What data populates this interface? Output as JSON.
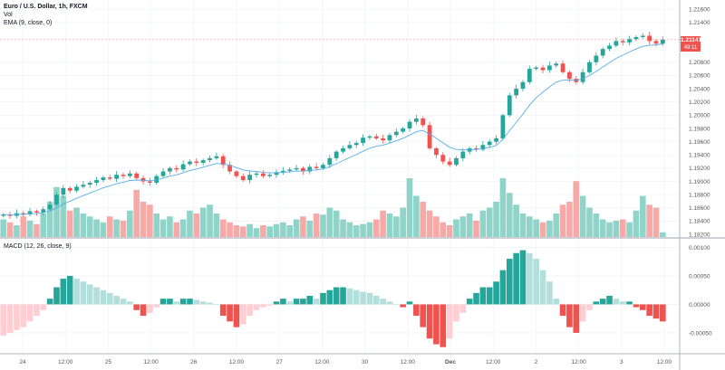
{
  "header": {
    "title": "Euro / U.S. Dollar, 1h, FXCM",
    "volume_label": "Vol",
    "ema_label": "EMA (9, close, 0)",
    "macd_label": "MACD (12, 26, close, 9)"
  },
  "price_tag": {
    "value": "1.21141",
    "countdown": "49:11"
  },
  "colors": {
    "up": "#26a69a",
    "down": "#ef5350",
    "vol_up": "#8fd3c9",
    "vol_down": "#f7a9a7",
    "ema": "#5aaee8",
    "macd_up_strong": "#26a69a",
    "macd_up_weak": "#b2dfdb",
    "macd_down_strong": "#ef5350",
    "macd_down_weak": "#ffcdd2"
  },
  "chart_data": [
    {
      "type": "candlestick",
      "title": "Euro / U.S. Dollar, 1h, FXCM",
      "y_ticks": [
        "1.21600",
        "1.21400",
        "1.20800",
        "1.20600",
        "1.20400",
        "1.20200",
        "1.20000",
        "1.19800",
        "1.19600",
        "1.19400",
        "1.19200",
        "1.19000",
        "1.18800",
        "1.18600",
        "1.18400",
        "1.18200"
      ],
      "ylim": [
        1.1816,
        1.2174
      ],
      "x_ticks": [
        "24",
        "12:00",
        "25",
        "12:00",
        "26",
        "12:00",
        "27",
        "12:00",
        "30",
        "12:00",
        "Dec",
        "12:00",
        "2",
        "12:00",
        "3",
        "12:00"
      ],
      "close": [
        1.185,
        1.1848,
        1.1852,
        1.185,
        1.1855,
        1.1853,
        1.1858,
        1.1865,
        1.188,
        1.189,
        1.1886,
        1.1892,
        1.1895,
        1.1898,
        1.1902,
        1.1906,
        1.1904,
        1.191,
        1.1908,
        1.1912,
        1.1905,
        1.19,
        1.1898,
        1.1908,
        1.1915,
        1.192,
        1.1918,
        1.1926,
        1.193,
        1.1928,
        1.1932,
        1.1935,
        1.1938,
        1.1925,
        1.1915,
        1.1908,
        1.1902,
        1.191,
        1.1912,
        1.1908,
        1.191,
        1.1914,
        1.1916,
        1.1918,
        1.192,
        1.1915,
        1.1922,
        1.192,
        1.1925,
        1.1935,
        1.1945,
        1.195,
        1.1955,
        1.1958,
        1.1966,
        1.1968,
        1.1965,
        1.1962,
        1.197,
        1.1975,
        1.198,
        1.199,
        1.1995,
        1.1985,
        1.195,
        1.194,
        1.193,
        1.1925,
        1.1935,
        1.1945,
        1.195,
        1.1948,
        1.1955,
        1.196,
        1.1965,
        1.2,
        1.203,
        1.204,
        1.205,
        1.207,
        1.2072,
        1.2068,
        1.2075,
        1.2078,
        1.2065,
        1.2055,
        1.205,
        1.2065,
        1.208,
        1.209,
        1.21,
        1.2105,
        1.2112,
        1.211,
        1.2115,
        1.2118,
        1.212,
        1.2112,
        1.2108,
        1.2114
      ],
      "ema_period": 9,
      "last_price": 1.21141
    },
    {
      "type": "bar",
      "title": "Vol",
      "values": [
        30,
        25,
        20,
        35,
        28,
        22,
        40,
        60,
        85,
        70,
        45,
        50,
        40,
        35,
        30,
        25,
        35,
        30,
        28,
        45,
        80,
        60,
        55,
        40,
        30,
        35,
        25,
        30,
        45,
        40,
        50,
        55,
        40,
        30,
        25,
        20,
        18,
        22,
        15,
        20,
        18,
        22,
        25,
        20,
        30,
        35,
        28,
        40,
        38,
        50,
        45,
        30,
        25,
        20,
        22,
        25,
        30,
        45,
        40,
        35,
        50,
        100,
        70,
        60,
        45,
        35,
        25,
        20,
        30,
        35,
        40,
        28,
        45,
        50,
        60,
        100,
        75,
        55,
        40,
        35,
        30,
        25,
        28,
        40,
        55,
        60,
        95,
        70,
        50,
        40,
        30,
        25,
        28,
        30,
        25,
        45,
        70,
        55,
        50,
        8
      ]
    },
    {
      "type": "bar",
      "title": "MACD (12, 26, close, 9)",
      "y_ticks": [
        "0.00100",
        "0.00050",
        "0.00000",
        "-0.00050"
      ],
      "values": [
        -0.00055,
        -0.0005,
        -0.00045,
        -0.0004,
        -0.0003,
        -0.0002,
        -0.0001,
        0.0001,
        0.0003,
        0.00045,
        0.0005,
        0.00045,
        0.0004,
        0.00035,
        0.0003,
        0.00025,
        0.0002,
        0.00015,
        0.0001,
        5e-05,
        -0.0001,
        -0.0002,
        -0.00015,
        -5e-05,
        0.0001,
        0.0001,
        5e-05,
        0.0001,
        0.0001,
        8e-05,
        5e-05,
        3e-05,
        0.0,
        -0.0002,
        -0.0003,
        -0.0004,
        -0.00035,
        -0.0002,
        -0.0001,
        -5e-05,
        -2e-05,
        5e-05,
        0.0001,
        5e-05,
        0.0001,
        0.0001,
        0.00015,
        0.0001,
        0.0002,
        0.00025,
        0.0003,
        0.0003,
        0.00028,
        0.00025,
        0.00022,
        0.0002,
        0.00015,
        0.0001,
        5e-05,
        0.0,
        -5e-05,
        5e-05,
        -0.0002,
        -0.0004,
        -0.0006,
        -0.0007,
        -0.00075,
        -0.0006,
        -0.0003,
        -0.00015,
        0.0001,
        0.0002,
        0.0003,
        0.0003,
        0.0004,
        0.0006,
        0.0008,
        0.0009,
        0.00095,
        0.0009,
        0.0008,
        0.0006,
        0.0004,
        0.0001,
        -0.0002,
        -0.0004,
        -0.0005,
        -0.0003,
        -0.0001,
        5e-05,
        0.0001,
        0.00015,
        0.0001,
        5e-05,
        5e-05,
        -5e-05,
        -0.0001,
        -0.0002,
        -0.00025,
        -0.0003
      ],
      "ylim": [
        -0.00085,
        0.00115
      ]
    }
  ]
}
